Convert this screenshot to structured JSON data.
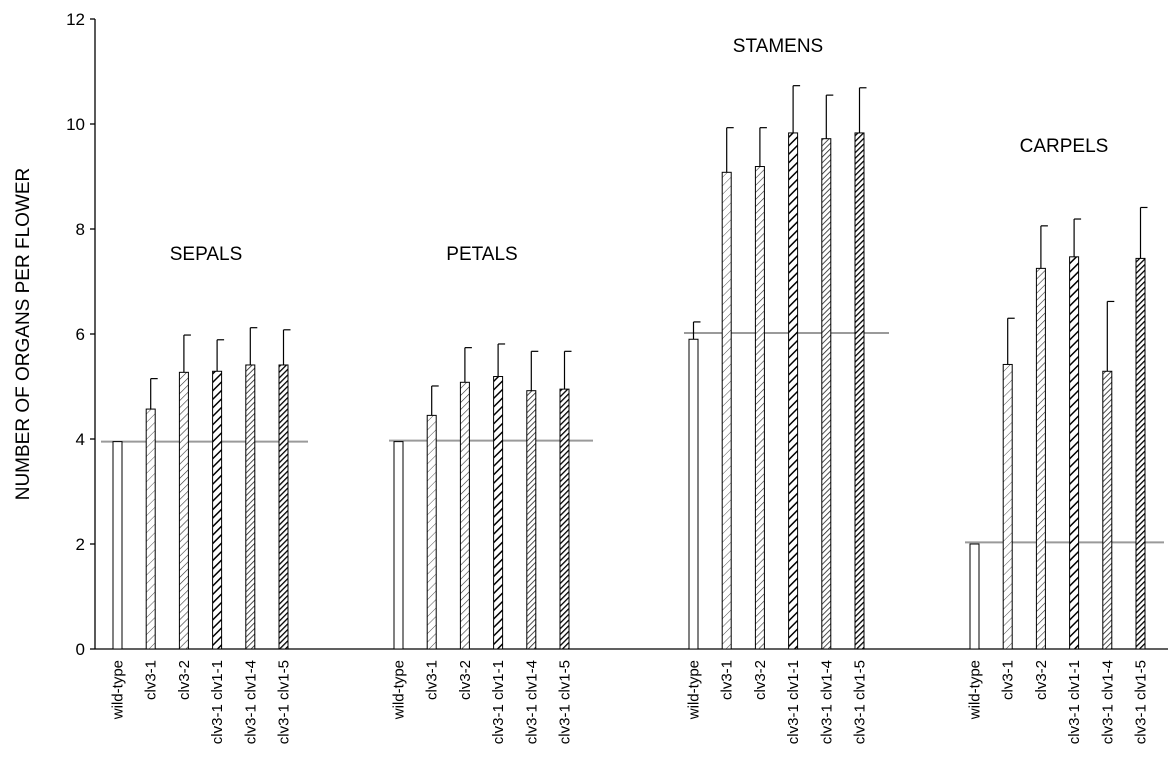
{
  "chart_data": {
    "type": "bar",
    "title": "",
    "xlabel": "",
    "ylabel": "NUMBER OF ORGANS PER FLOWER",
    "ylim": [
      0,
      12
    ],
    "yticks": [
      0,
      2,
      4,
      6,
      8,
      10,
      12
    ],
    "grid": false,
    "error_bars": true,
    "categories": [
      "wild-type",
      "clv3-1",
      "clv3-2",
      "clv3-1 clv1-1",
      "clv3-1 clv1-4",
      "clv3-1 clv1-5"
    ],
    "groups": [
      {
        "label": "SEPALS",
        "reference_line": 3.95,
        "values": [
          3.95,
          4.57,
          5.27,
          5.29,
          5.41,
          5.41
        ],
        "errors": [
          0,
          0.58,
          0.71,
          0.6,
          0.71,
          0.67
        ]
      },
      {
        "label": "PETALS",
        "reference_line": 3.97,
        "values": [
          3.95,
          4.45,
          5.08,
          5.19,
          4.92,
          4.95
        ],
        "errors": [
          0,
          0.56,
          0.66,
          0.62,
          0.75,
          0.72
        ]
      },
      {
        "label": "STAMENS",
        "reference_line": 6.02,
        "values": [
          5.9,
          9.08,
          9.19,
          9.83,
          9.72,
          9.83
        ],
        "errors": [
          0.33,
          0.85,
          0.74,
          0.9,
          0.83,
          0.86
        ]
      },
      {
        "label": "CARPELS",
        "reference_line": 2.03,
        "values": [
          2.0,
          5.42,
          7.25,
          7.47,
          5.29,
          7.44
        ],
        "errors": [
          0,
          0.88,
          0.81,
          0.72,
          1.33,
          0.97
        ]
      }
    ],
    "bar_fills": [
      "white",
      "sparse-hatch",
      "light-hatch",
      "heavy-hatch",
      "medium-hatch",
      "dense-hatch"
    ],
    "colors": {
      "reference_line": "#9a9a9a",
      "bar_stroke": "#000000"
    }
  }
}
